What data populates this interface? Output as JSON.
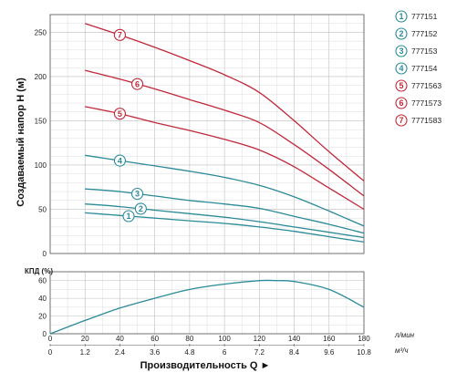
{
  "chart_data": [
    {
      "type": "line",
      "ylabel": "Создаваемый напор H (м)",
      "xlim": [
        0,
        180
      ],
      "ylim": [
        0,
        270
      ],
      "yticks": [
        "0",
        "50",
        "100",
        "150",
        "200",
        "250"
      ],
      "grid": true,
      "legend_position": "right",
      "colors": {
        "teal": "#2a8a98",
        "red": "#c0283a",
        "grid": "#bdbdbd"
      },
      "series": [
        {
          "name": "777151",
          "marker": "1",
          "color": "#2a8a98",
          "x": [
            20,
            40,
            60,
            80,
            100,
            120,
            140,
            160,
            180
          ],
          "y": [
            46,
            43,
            40,
            37,
            34,
            30,
            25,
            19,
            13
          ]
        },
        {
          "name": "777152",
          "marker": "2",
          "color": "#2a8a98",
          "x": [
            20,
            40,
            60,
            80,
            100,
            120,
            140,
            160,
            180
          ],
          "y": [
            56,
            53,
            49,
            45,
            41,
            36,
            30,
            24,
            18
          ]
        },
        {
          "name": "777153",
          "marker": "3",
          "color": "#2a8a98",
          "x": [
            20,
            40,
            60,
            80,
            100,
            120,
            140,
            160,
            180
          ],
          "y": [
            73,
            70,
            65,
            60,
            56,
            51,
            42,
            33,
            23
          ]
        },
        {
          "name": "777154",
          "marker": "4",
          "color": "#2a8a98",
          "x": [
            20,
            40,
            60,
            80,
            100,
            120,
            140,
            160,
            180
          ],
          "y": [
            111,
            105,
            99,
            93,
            86,
            77,
            64,
            48,
            31
          ]
        },
        {
          "name": "7771563",
          "marker": "5",
          "color": "#c0283a",
          "x": [
            20,
            40,
            60,
            80,
            100,
            120,
            140,
            160,
            180
          ],
          "y": [
            166,
            158,
            148,
            139,
            129,
            117,
            98,
            74,
            50
          ]
        },
        {
          "name": "7771573",
          "marker": "6",
          "color": "#c0283a",
          "x": [
            20,
            40,
            60,
            80,
            100,
            120,
            140,
            160,
            180
          ],
          "y": [
            207,
            197,
            186,
            174,
            162,
            148,
            123,
            95,
            65
          ]
        },
        {
          "name": "7771583",
          "marker": "7",
          "color": "#c0283a",
          "x": [
            20,
            40,
            60,
            80,
            100,
            120,
            140,
            160,
            180
          ],
          "y": [
            260,
            247,
            233,
            218,
            202,
            182,
            150,
            115,
            82
          ]
        }
      ]
    },
    {
      "type": "line",
      "ylabel": "КПД (%)",
      "xlabel": "Производительность Q ►",
      "xlim": [
        0,
        180
      ],
      "ylim": [
        0,
        70
      ],
      "yticks": [
        "0",
        "20",
        "40",
        "60"
      ],
      "xticks_lmin": [
        "0",
        "20",
        "40",
        "60",
        "80",
        "100",
        "120",
        "140",
        "160",
        "180"
      ],
      "xticks_m3h": [
        "0",
        "1.2",
        "2.4",
        "3.6",
        "4.8",
        "6",
        "7.2",
        "8.4",
        "9.6",
        "10.8"
      ],
      "unit_lmin": "л/мин",
      "unit_m3h": "м³/ч",
      "grid": true,
      "series": [
        {
          "color": "#2a8a98",
          "x": [
            0,
            20,
            40,
            60,
            80,
            100,
            120,
            130,
            140,
            160,
            180
          ],
          "y": [
            0,
            15,
            29,
            40,
            50,
            56,
            60,
            60,
            59,
            50,
            30
          ]
        }
      ]
    }
  ]
}
